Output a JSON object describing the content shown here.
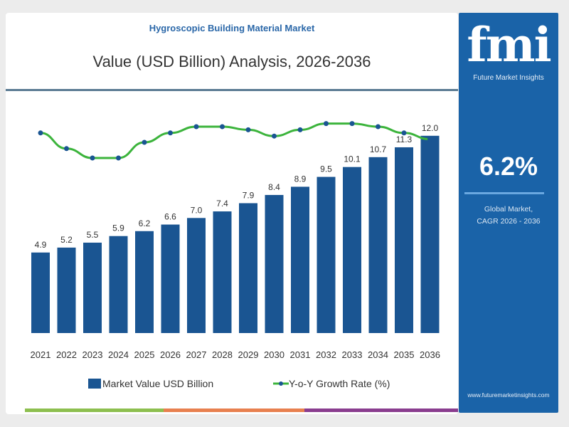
{
  "header": {
    "subtitle": "Hygroscopic Building Material Market",
    "title": "Value (USD Billion) Analysis, 2026-2036"
  },
  "panel": {
    "logo": "fmi",
    "logo_sub": "Future Market Insights",
    "cagr": "6.2%",
    "cagr_label_1": "Global Market,",
    "cagr_label_2": "CAGR 2026 - 2036",
    "url": "www.futuremarketinsights.com",
    "color": "#1a63a8"
  },
  "chart_data": {
    "type": "bar",
    "title": "Value (USD Billion) Analysis, 2026-2036",
    "categories": [
      "2021",
      "2022",
      "2023",
      "2024",
      "2025",
      "2026",
      "2027",
      "2028",
      "2029",
      "2030",
      "2031",
      "2032",
      "2033",
      "2034",
      "2035",
      "2036"
    ],
    "series": [
      {
        "name": "Market Value USD Billion",
        "type": "bar",
        "color": "#1a5592",
        "values": [
          4.9,
          5.2,
          5.5,
          5.9,
          6.2,
          6.6,
          7.0,
          7.4,
          7.9,
          8.4,
          8.9,
          9.5,
          10.1,
          10.7,
          11.3,
          12.0
        ],
        "labels": [
          "4.9",
          "5.2",
          "5.5",
          "5.9",
          "6.2",
          "6.6",
          "7.0",
          "7.4",
          "7.9",
          "8.4",
          "8.9",
          "9.5",
          "10.1",
          "10.7",
          "11.3",
          "12.0"
        ]
      },
      {
        "name": "Y-o-Y Growth Rate (%)",
        "type": "line",
        "color": "#3cb43c",
        "marker_color": "#1a5592",
        "values": [
          6.3,
          5.8,
          5.5,
          5.5,
          6.0,
          6.3,
          6.5,
          6.5,
          6.4,
          6.2,
          6.4,
          6.6,
          6.6,
          6.5,
          6.3,
          6.1
        ]
      }
    ],
    "ylim": [
      0,
      12.5
    ],
    "grid": false,
    "legend": "bottom"
  },
  "footer_strip": [
    "#8dbf4f",
    "#e8804f",
    "#8a3d8f"
  ]
}
